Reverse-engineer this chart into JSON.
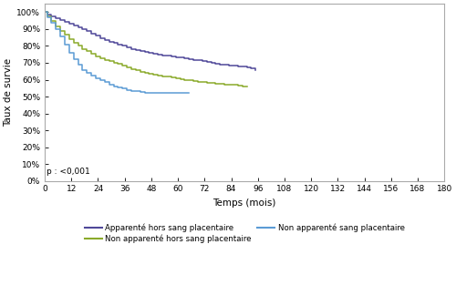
{
  "title": "",
  "xlabel": "Temps (mois)",
  "ylabel": "Taux de survie",
  "xlim": [
    0,
    180
  ],
  "ylim": [
    0.0,
    1.05
  ],
  "xticks": [
    0,
    12,
    24,
    36,
    48,
    60,
    72,
    84,
    96,
    108,
    120,
    132,
    144,
    156,
    168,
    180
  ],
  "yticks": [
    0.0,
    0.1,
    0.2,
    0.3,
    0.4,
    0.5,
    0.6,
    0.7,
    0.8,
    0.9,
    1.0
  ],
  "ytick_labels": [
    "0%",
    "10%",
    "20%",
    "30%",
    "40%",
    "50%",
    "60%",
    "70%",
    "80%",
    "90%",
    "100%"
  ],
  "pvalue_text": "p : <0,001",
  "background_color": "#ffffff",
  "series": [
    {
      "label": "Apparenté hors sang placentaire",
      "color": "#4f4899",
      "x": [
        0,
        1,
        3,
        5,
        7,
        9,
        11,
        13,
        15,
        17,
        19,
        21,
        23,
        25,
        27,
        29,
        31,
        33,
        35,
        37,
        39,
        41,
        43,
        45,
        47,
        49,
        51,
        53,
        55,
        57,
        59,
        61,
        63,
        65,
        67,
        69,
        71,
        73,
        75,
        77,
        79,
        81,
        83,
        85,
        87,
        89,
        91,
        93,
        95
      ],
      "y": [
        1.0,
        0.985,
        0.975,
        0.965,
        0.955,
        0.945,
        0.93,
        0.92,
        0.91,
        0.9,
        0.89,
        0.875,
        0.86,
        0.845,
        0.835,
        0.825,
        0.818,
        0.81,
        0.8,
        0.79,
        0.782,
        0.775,
        0.77,
        0.765,
        0.76,
        0.755,
        0.75,
        0.745,
        0.742,
        0.74,
        0.735,
        0.73,
        0.725,
        0.72,
        0.718,
        0.715,
        0.71,
        0.705,
        0.7,
        0.695,
        0.69,
        0.688,
        0.685,
        0.682,
        0.68,
        0.678,
        0.675,
        0.665,
        0.655
      ]
    },
    {
      "label": "Non apparenté hors sang placentaire",
      "color": "#8aaa2a",
      "x": [
        0,
        1,
        3,
        5,
        7,
        9,
        11,
        13,
        15,
        17,
        19,
        21,
        23,
        25,
        27,
        29,
        31,
        33,
        35,
        37,
        39,
        41,
        43,
        45,
        47,
        49,
        51,
        53,
        55,
        57,
        59,
        61,
        63,
        65,
        67,
        69,
        71,
        73,
        75,
        77,
        79,
        81,
        83,
        85,
        87,
        89,
        91
      ],
      "y": [
        1.0,
        0.975,
        0.95,
        0.918,
        0.89,
        0.865,
        0.84,
        0.818,
        0.8,
        0.782,
        0.768,
        0.755,
        0.74,
        0.728,
        0.718,
        0.71,
        0.7,
        0.692,
        0.685,
        0.672,
        0.662,
        0.655,
        0.648,
        0.64,
        0.635,
        0.628,
        0.625,
        0.62,
        0.618,
        0.612,
        0.608,
        0.602,
        0.598,
        0.595,
        0.592,
        0.588,
        0.585,
        0.582,
        0.58,
        0.578,
        0.575,
        0.572,
        0.57,
        0.568,
        0.565,
        0.562,
        0.56
      ]
    },
    {
      "label": "Non apparenté sang placentaire",
      "color": "#5b9bd5",
      "x": [
        0,
        1,
        3,
        5,
        7,
        9,
        11,
        13,
        15,
        17,
        19,
        21,
        23,
        25,
        27,
        29,
        31,
        33,
        35,
        37,
        39,
        41,
        43,
        45,
        47,
        49,
        51,
        53,
        55,
        57,
        59,
        61,
        63,
        65
      ],
      "y": [
        1.0,
        0.97,
        0.94,
        0.9,
        0.855,
        0.81,
        0.76,
        0.72,
        0.688,
        0.658,
        0.638,
        0.622,
        0.61,
        0.598,
        0.585,
        0.572,
        0.562,
        0.555,
        0.548,
        0.54,
        0.535,
        0.53,
        0.527,
        0.524,
        0.522,
        0.52,
        0.52,
        0.52,
        0.52,
        0.52,
        0.52,
        0.52,
        0.52,
        0.52
      ]
    }
  ]
}
